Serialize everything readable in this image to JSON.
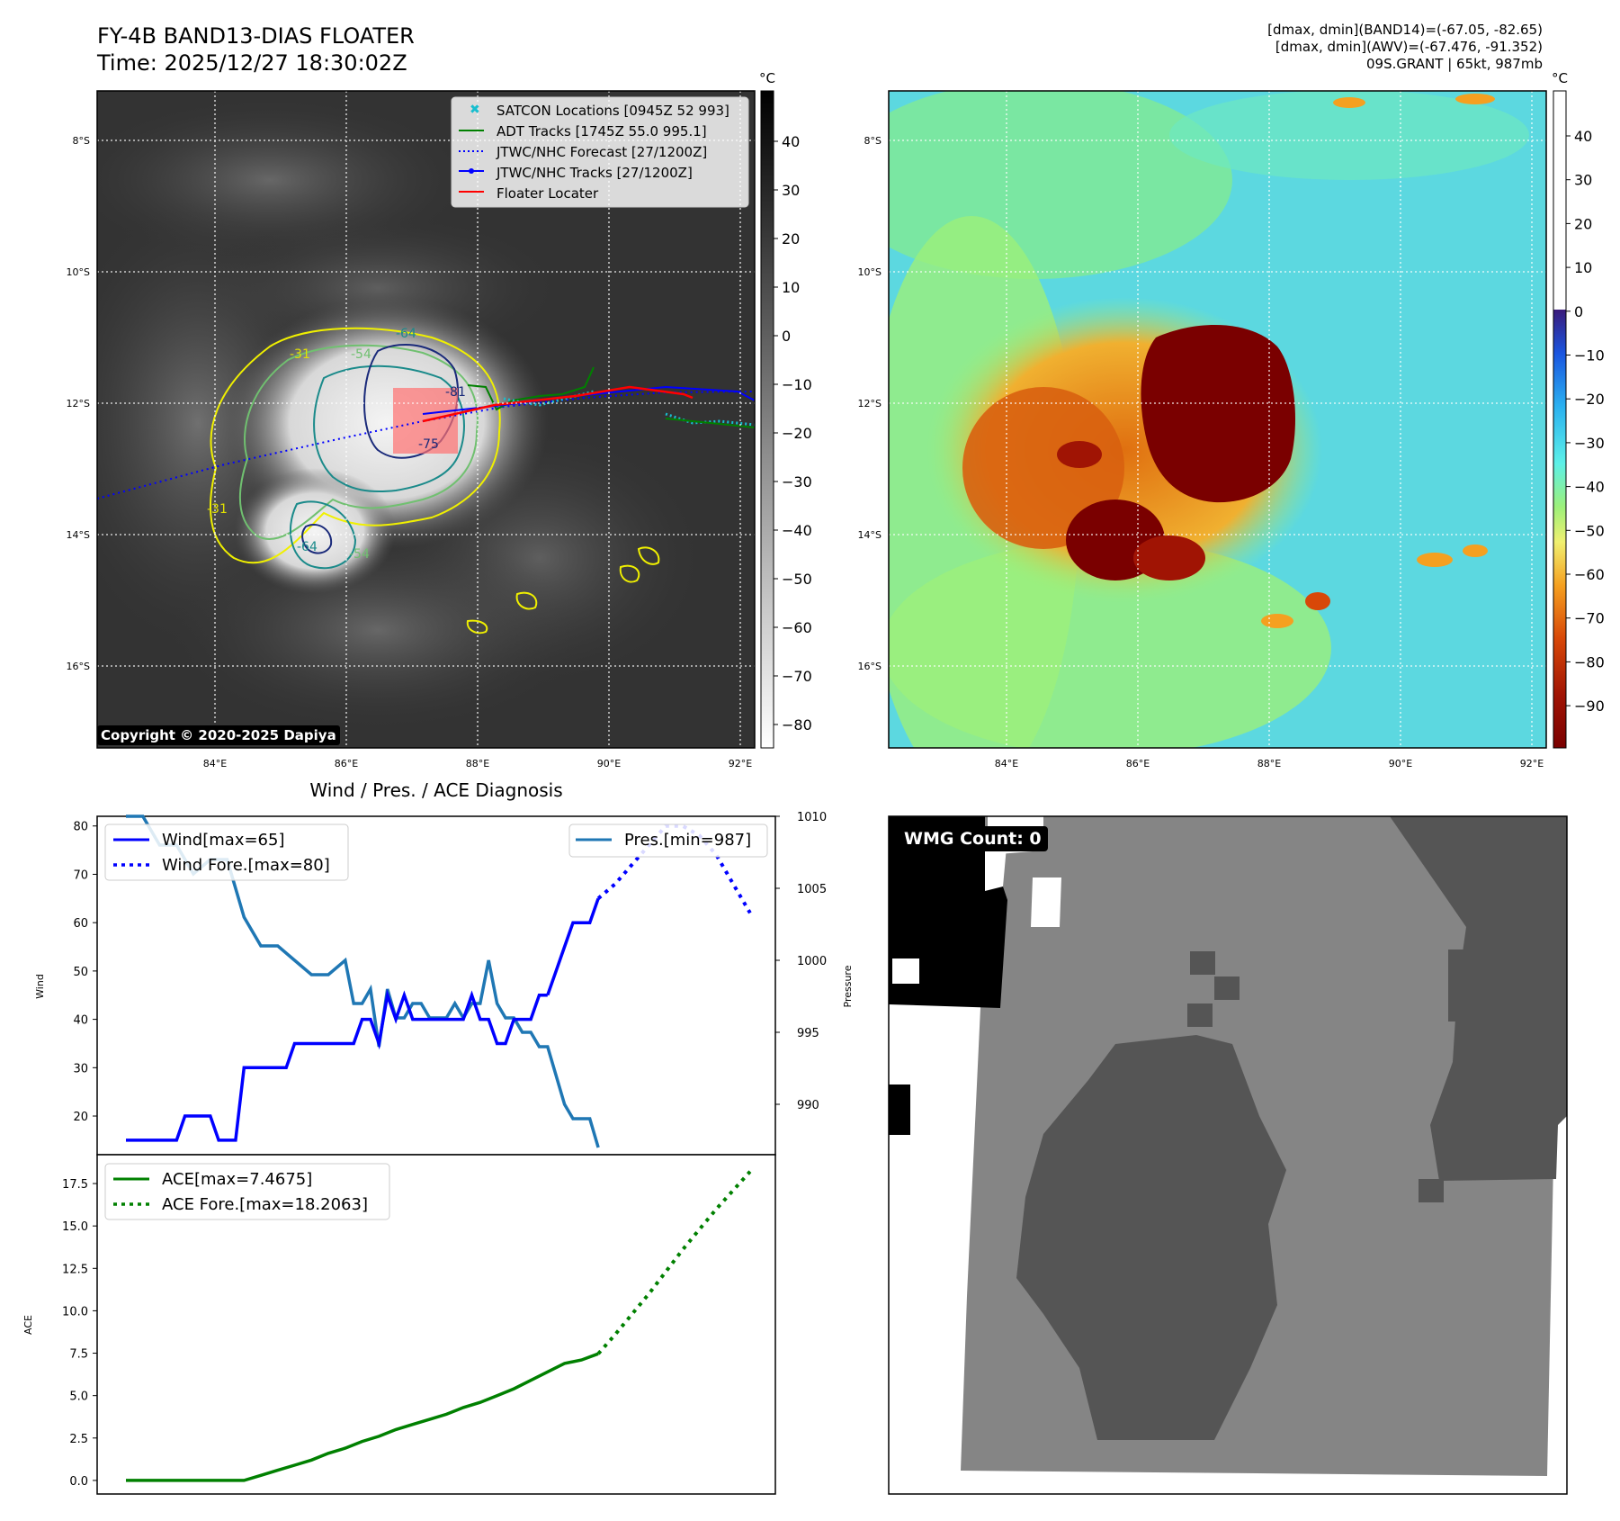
{
  "header": {
    "title_line1": "FY-4B BAND13-DIAS FLOATER",
    "title_line2": "Time: 2025/12/27 18:30:02Z",
    "info_line1": "[dmax, dmin](BAND14)=(-67.05, -82.65)",
    "info_line2": "[dmax, dmin](AWV)=(-67.476, -91.352)",
    "info_line3": "09S.GRANT | 65kt, 987mb"
  },
  "map": {
    "lat_labels": [
      "8°S",
      "10°S",
      "12°S",
      "14°S",
      "16°S"
    ],
    "lon_labels": [
      "84°E",
      "86°E",
      "88°E",
      "90°E",
      "92°E"
    ],
    "copyright": "Copyright © 2020-2025 Dapiya",
    "contour_labels": [
      "-31",
      "-54",
      "-64",
      "-31",
      "-54",
      "-64",
      "-75",
      "-81"
    ],
    "legend": [
      {
        "label": "SATCON Locations [0945Z 52 993]",
        "color": "#17becf"
      },
      {
        "label": "ADT Tracks [1745Z 55.0 995.1]",
        "color": "#008000"
      },
      {
        "label": "JTWC/NHC Forecast [27/1200Z]",
        "color": "#0000ff"
      },
      {
        "label": "JTWC/NHC Tracks [27/1200Z]",
        "color": "#0000ff"
      },
      {
        "label": "Floater Locater",
        "color": "#ff0000"
      }
    ]
  },
  "colorbars": {
    "unit": "°C",
    "ir_ticks": [
      "40",
      "30",
      "20",
      "10",
      "0",
      "−10",
      "−20",
      "−30",
      "−40",
      "−50",
      "−60",
      "−70",
      "−80"
    ],
    "awv_ticks": [
      "40",
      "30",
      "20",
      "10",
      "0",
      "−10",
      "−20",
      "−30",
      "−40",
      "−50",
      "−60",
      "−70",
      "−80",
      "−90"
    ]
  },
  "diagnosis": {
    "title": "Wind / Pres. / ACE Diagnosis",
    "wind_ylabel": "Wind",
    "pressure_ylabel": "Pressure",
    "ace_ylabel": "ACE",
    "wind_ticks": [
      "80",
      "70",
      "60",
      "50",
      "40",
      "30",
      "20"
    ],
    "pressure_ticks": [
      "1010",
      "1005",
      "1000",
      "995",
      "990"
    ],
    "ace_ticks": [
      "17.5",
      "15.0",
      "12.5",
      "10.0",
      "7.5",
      "5.0",
      "2.5",
      "0.0"
    ],
    "legend_wind": "Wind[max=65]",
    "legend_wind_fore": "Wind Fore.[max=80]",
    "legend_pres": "Pres.[min=987]",
    "legend_ace": "ACE[max=7.4675]",
    "legend_ace_fore": "ACE Fore.[max=18.2063]"
  },
  "wmg": {
    "label": "WMG Count: 0"
  },
  "chart_data": [
    {
      "type": "line",
      "title": "Wind / Pres. / ACE Diagnosis",
      "ylabel": "Wind",
      "ylim": [
        12,
        82
      ],
      "series": [
        {
          "name": "Wind[max=65]",
          "color": "#0000ff",
          "style": "solid",
          "x": [
            0,
            1,
            2,
            3,
            4,
            5,
            6,
            7,
            8,
            9,
            10,
            11,
            12,
            13,
            14,
            15,
            16,
            17,
            18,
            19,
            20,
            21,
            22,
            23,
            24,
            25,
            26,
            27,
            28,
            29,
            30,
            31,
            32,
            33,
            34,
            35,
            36,
            37,
            38,
            39,
            40,
            41,
            42,
            43,
            44,
            45,
            46,
            47,
            48,
            49,
            50
          ],
          "values": [
            15,
            15,
            15,
            15,
            15,
            15,
            15,
            20,
            20,
            20,
            20,
            15,
            15,
            15,
            30,
            30,
            30,
            30,
            30,
            30,
            35,
            35,
            35,
            35,
            35,
            35,
            35,
            35,
            40,
            40,
            35,
            45,
            40,
            45,
            40,
            40,
            40,
            40,
            40,
            40,
            40,
            45,
            40,
            40,
            35,
            35,
            40,
            40,
            40,
            45,
            45
          ]
        },
        {
          "name": "Wind[max=65] (cont.)",
          "color": "#0000ff",
          "style": "solid",
          "x": [
            50,
            51,
            52,
            53,
            54,
            55,
            56
          ],
          "values": [
            45,
            50,
            55,
            60,
            60,
            60,
            65
          ]
        },
        {
          "name": "Wind Fore.[max=80]",
          "color": "#0000ff",
          "style": "dotted",
          "x": [
            56,
            58,
            60,
            62,
            64,
            66,
            68,
            70,
            72,
            74
          ],
          "values": [
            65,
            68,
            72,
            76,
            80,
            80,
            78,
            74,
            68,
            62
          ]
        }
      ]
    },
    {
      "type": "line",
      "ylabel": "Pressure",
      "ylim": [
        986.5,
        1010
      ],
      "series": [
        {
          "name": "Pres.[min=987]",
          "color": "#1f77b4",
          "style": "solid",
          "x": [
            0,
            2,
            4,
            6,
            8,
            10,
            12,
            14,
            16,
            18,
            20,
            22,
            24,
            26,
            27,
            28,
            29,
            30,
            31,
            32,
            33,
            34,
            35,
            36,
            37,
            38,
            39,
            40,
            41,
            42,
            43,
            44,
            45,
            46,
            47,
            48,
            49,
            50,
            51,
            52,
            53,
            54,
            55,
            56
          ],
          "values": [
            1010,
            1010,
            1008,
            1008,
            1006,
            1007,
            1007,
            1003,
            1001,
            1001,
            1000,
            999,
            999,
            1000,
            997,
            997,
            998,
            994,
            998,
            996,
            996,
            997,
            997,
            996,
            996,
            996,
            997,
            996,
            997,
            997,
            1000,
            997,
            996,
            996,
            995,
            995,
            994,
            994,
            992,
            990,
            989,
            989,
            989,
            987
          ]
        }
      ]
    },
    {
      "type": "line",
      "ylabel": "ACE",
      "ylim": [
        -0.8,
        19.2
      ],
      "series": [
        {
          "name": "ACE[max=7.4675]",
          "color": "#008000",
          "style": "solid",
          "x": [
            0,
            14,
            16,
            18,
            20,
            22,
            24,
            26,
            28,
            30,
            32,
            34,
            36,
            38,
            40,
            42,
            44,
            46,
            48,
            50,
            52,
            54,
            56
          ],
          "values": [
            0,
            0,
            0.3,
            0.6,
            0.9,
            1.2,
            1.6,
            1.9,
            2.3,
            2.6,
            3.0,
            3.3,
            3.6,
            3.9,
            4.3,
            4.6,
            5.0,
            5.4,
            5.9,
            6.4,
            6.9,
            7.1,
            7.4675
          ]
        },
        {
          "name": "ACE Fore.[max=18.2063]",
          "color": "#008000",
          "style": "dotted",
          "x": [
            56,
            58,
            60,
            62,
            64,
            66,
            68,
            70,
            72,
            74
          ],
          "values": [
            7.4675,
            8.6,
            9.8,
            11.0,
            12.3,
            13.6,
            14.8,
            16.0,
            17.1,
            18.2063
          ]
        }
      ]
    }
  ]
}
